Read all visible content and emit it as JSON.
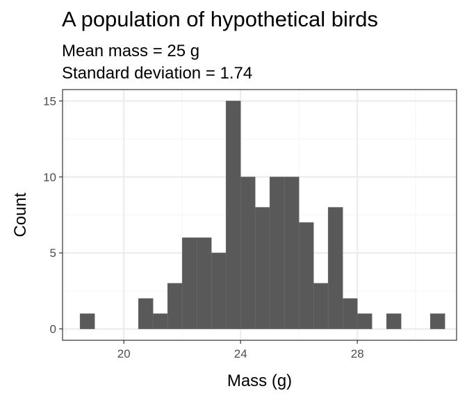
{
  "chart_data": {
    "type": "bar",
    "title": "A population of hypothetical birds",
    "subtitle": [
      "Mean mass = 25 g",
      "Standard deviation = 1.74"
    ],
    "xlabel": "Mass (g)",
    "ylabel": "Count",
    "bin_width": 0.5,
    "bins": [
      {
        "x": 18.75,
        "count": 1
      },
      {
        "x": 20.75,
        "count": 2
      },
      {
        "x": 21.25,
        "count": 1
      },
      {
        "x": 21.75,
        "count": 3
      },
      {
        "x": 22.25,
        "count": 6
      },
      {
        "x": 22.75,
        "count": 6
      },
      {
        "x": 23.25,
        "count": 5
      },
      {
        "x": 23.75,
        "count": 15
      },
      {
        "x": 24.25,
        "count": 10
      },
      {
        "x": 24.75,
        "count": 8
      },
      {
        "x": 25.25,
        "count": 10
      },
      {
        "x": 25.75,
        "count": 10
      },
      {
        "x": 26.25,
        "count": 7
      },
      {
        "x": 26.75,
        "count": 3
      },
      {
        "x": 27.25,
        "count": 8
      },
      {
        "x": 27.75,
        "count": 2
      },
      {
        "x": 28.25,
        "count": 1
      },
      {
        "x": 29.25,
        "count": 1
      },
      {
        "x": 30.75,
        "count": 1
      }
    ],
    "xlim": [
      17.9,
      31.4
    ],
    "ylim": [
      -0.75,
      15.75
    ],
    "x_ticks": [
      {
        "value": 20,
        "label": "20"
      },
      {
        "value": 24,
        "label": "24"
      },
      {
        "value": 28,
        "label": "28"
      }
    ],
    "y_ticks": [
      {
        "value": 0,
        "label": "0"
      },
      {
        "value": 5,
        "label": "5"
      },
      {
        "value": 10,
        "label": "10"
      },
      {
        "value": 15,
        "label": "15"
      }
    ],
    "grid": true,
    "colors": {
      "bar": "#595959",
      "bar_outline": "#6e6e6e",
      "grid_major": "#ebebeb",
      "grid_minor": "#f5f5f5",
      "panel_border": "#333333"
    }
  }
}
